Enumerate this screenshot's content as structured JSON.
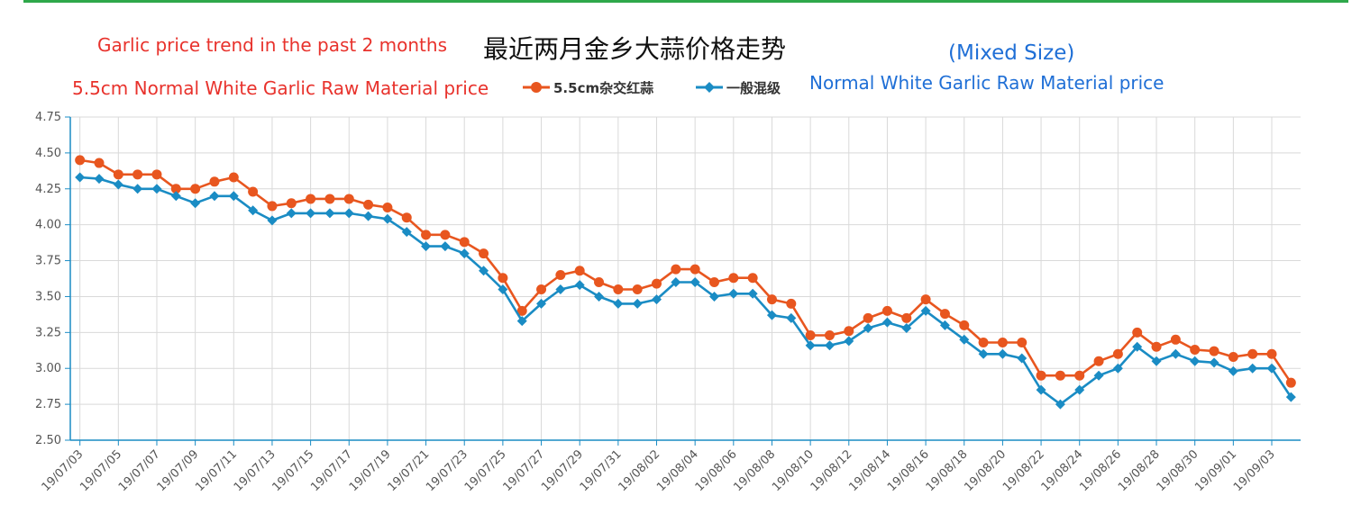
{
  "chart_data": {
    "type": "line",
    "annotations": {
      "title_en": "Garlic price trend in the past 2 months",
      "title_cn": "最近两月金乡大蒜价格走势",
      "subtitle": "(Mixed Size)",
      "series1_en": "5.5cm Normal White Garlic Raw Material price",
      "series2_en": "Normal White Garlic Raw Material price"
    },
    "ylim": [
      2.5,
      4.75
    ],
    "yticks": [
      "2.50",
      "2.75",
      "3.00",
      "3.25",
      "3.50",
      "3.75",
      "4.00",
      "4.25",
      "4.50",
      "4.75"
    ],
    "grid": true,
    "legend_position": "top-center",
    "x": [
      "19/07/03",
      "19/07/04",
      "19/07/05",
      "19/07/06",
      "19/07/07",
      "19/07/08",
      "19/07/09",
      "19/07/10",
      "19/07/11",
      "19/07/12",
      "19/07/13",
      "19/07/14",
      "19/07/15",
      "19/07/16",
      "19/07/17",
      "19/07/18",
      "19/07/19",
      "19/07/20",
      "19/07/21",
      "19/07/22",
      "19/07/23",
      "19/07/24",
      "19/07/25",
      "19/07/26",
      "19/07/27",
      "19/07/28",
      "19/07/29",
      "19/07/30",
      "19/07/31",
      "19/08/01",
      "19/08/02",
      "19/08/03",
      "19/08/04",
      "19/08/05",
      "19/08/06",
      "19/08/07",
      "19/08/08",
      "19/08/09",
      "19/08/10",
      "19/08/11",
      "19/08/12",
      "19/08/13",
      "19/08/14",
      "19/08/15",
      "19/08/16",
      "19/08/17",
      "19/08/18",
      "19/08/19",
      "19/08/20",
      "19/08/21",
      "19/08/22",
      "19/08/23",
      "19/08/24",
      "19/08/25",
      "19/08/26",
      "19/08/27",
      "19/08/28",
      "19/08/29",
      "19/08/30",
      "19/08/31",
      "19/09/01",
      "19/09/02",
      "19/09/03",
      "19/09/04"
    ],
    "x_tick_labels": [
      "19/07/03",
      "19/07/05",
      "19/07/07",
      "19/07/09",
      "19/07/11",
      "19/07/13",
      "19/07/15",
      "19/07/17",
      "19/07/19",
      "19/07/21",
      "19/07/23",
      "19/07/25",
      "19/07/27",
      "19/07/29",
      "19/07/31",
      "19/08/02",
      "19/08/04",
      "19/08/06",
      "19/08/08",
      "19/08/10",
      "19/08/12",
      "19/08/14",
      "19/08/16",
      "19/08/18",
      "19/08/20",
      "19/08/22",
      "19/08/24",
      "19/08/26",
      "19/08/28",
      "19/08/30",
      "19/09/01",
      "19/09/03"
    ],
    "series": [
      {
        "name": "5.5cm杂交红蒜",
        "color": "#e8561f",
        "marker": "circle",
        "values": [
          4.45,
          4.43,
          4.35,
          4.35,
          4.35,
          4.25,
          4.25,
          4.3,
          4.33,
          4.23,
          4.13,
          4.15,
          4.18,
          4.18,
          4.18,
          4.14,
          4.12,
          4.05,
          3.93,
          3.93,
          3.88,
          3.8,
          3.63,
          3.4,
          3.55,
          3.65,
          3.68,
          3.6,
          3.55,
          3.55,
          3.59,
          3.69,
          3.69,
          3.6,
          3.63,
          3.63,
          3.48,
          3.45,
          3.23,
          3.23,
          3.26,
          3.35,
          3.4,
          3.35,
          3.48,
          3.38,
          3.3,
          3.18,
          3.18,
          3.18,
          2.95,
          2.95,
          2.95,
          3.05,
          3.1,
          3.25,
          3.15,
          3.2,
          3.13,
          3.12,
          3.08,
          3.1,
          3.1,
          2.9
        ]
      },
      {
        "name": "一般混级",
        "color": "#1a8cc4",
        "marker": "diamond",
        "values": [
          4.33,
          4.32,
          4.28,
          4.25,
          4.25,
          4.2,
          4.15,
          4.2,
          4.2,
          4.1,
          4.03,
          4.08,
          4.08,
          4.08,
          4.08,
          4.06,
          4.04,
          3.95,
          3.85,
          3.85,
          3.8,
          3.68,
          3.55,
          3.33,
          3.45,
          3.55,
          3.58,
          3.5,
          3.45,
          3.45,
          3.48,
          3.6,
          3.6,
          3.5,
          3.52,
          3.52,
          3.37,
          3.35,
          3.16,
          3.16,
          3.19,
          3.28,
          3.32,
          3.28,
          3.4,
          3.3,
          3.2,
          3.1,
          3.1,
          3.07,
          2.85,
          2.75,
          2.85,
          2.95,
          3.0,
          3.15,
          3.05,
          3.1,
          3.05,
          3.04,
          2.98,
          3.0,
          3.0,
          2.8
        ]
      }
    ]
  }
}
